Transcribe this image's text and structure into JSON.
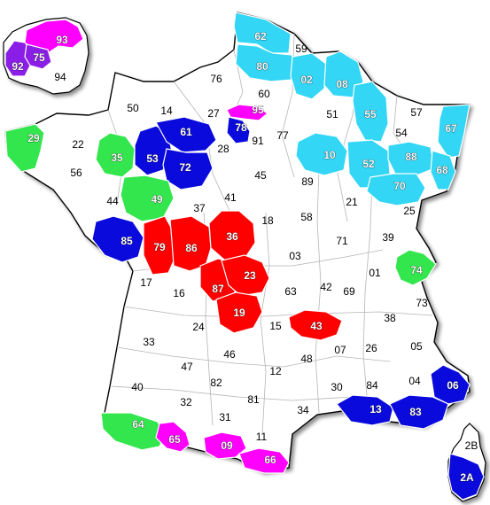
{
  "colors": {
    "cyan": "#33d6f4",
    "blue": "#0a0adc",
    "red": "#ff0000",
    "green": "#33e64d",
    "magenta": "#ff00ff",
    "purple": "#8a1ee6",
    "white": "#ffffff"
  },
  "departments": [
    {
      "code": "62",
      "color": "cyan"
    },
    {
      "code": "59",
      "color": "white"
    },
    {
      "code": "80",
      "color": "cyan"
    },
    {
      "code": "02",
      "color": "cyan"
    },
    {
      "code": "08",
      "color": "cyan"
    },
    {
      "code": "76",
      "color": "white"
    },
    {
      "code": "60",
      "color": "white"
    },
    {
      "code": "50",
      "color": "white"
    },
    {
      "code": "14",
      "color": "white"
    },
    {
      "code": "27",
      "color": "white"
    },
    {
      "code": "95",
      "color": "magenta"
    },
    {
      "code": "51",
      "color": "white"
    },
    {
      "code": "55",
      "color": "cyan"
    },
    {
      "code": "57",
      "color": "white"
    },
    {
      "code": "67",
      "color": "cyan"
    },
    {
      "code": "29",
      "color": "green"
    },
    {
      "code": "22",
      "color": "white"
    },
    {
      "code": "35",
      "color": "green"
    },
    {
      "code": "53",
      "color": "blue"
    },
    {
      "code": "61",
      "color": "blue"
    },
    {
      "code": "72",
      "color": "blue"
    },
    {
      "code": "28",
      "color": "white"
    },
    {
      "code": "78",
      "color": "blue"
    },
    {
      "code": "91",
      "color": "white"
    },
    {
      "code": "77",
      "color": "white"
    },
    {
      "code": "10",
      "color": "cyan"
    },
    {
      "code": "52",
      "color": "cyan"
    },
    {
      "code": "54",
      "color": "white"
    },
    {
      "code": "88",
      "color": "cyan"
    },
    {
      "code": "68",
      "color": "cyan"
    },
    {
      "code": "56",
      "color": "white"
    },
    {
      "code": "44",
      "color": "white"
    },
    {
      "code": "49",
      "color": "green"
    },
    {
      "code": "45",
      "color": "white"
    },
    {
      "code": "89",
      "color": "white"
    },
    {
      "code": "70",
      "color": "cyan"
    },
    {
      "code": "21",
      "color": "white"
    },
    {
      "code": "25",
      "color": "white"
    },
    {
      "code": "37",
      "color": "white"
    },
    {
      "code": "41",
      "color": "white"
    },
    {
      "code": "18",
      "color": "white"
    },
    {
      "code": "58",
      "color": "white"
    },
    {
      "code": "85",
      "color": "blue"
    },
    {
      "code": "79",
      "color": "red"
    },
    {
      "code": "86",
      "color": "red"
    },
    {
      "code": "36",
      "color": "red"
    },
    {
      "code": "71",
      "color": "white"
    },
    {
      "code": "39",
      "color": "white"
    },
    {
      "code": "03",
      "color": "white"
    },
    {
      "code": "01",
      "color": "white"
    },
    {
      "code": "74",
      "color": "green"
    },
    {
      "code": "17",
      "color": "white"
    },
    {
      "code": "16",
      "color": "white"
    },
    {
      "code": "87",
      "color": "red"
    },
    {
      "code": "23",
      "color": "red"
    },
    {
      "code": "63",
      "color": "white"
    },
    {
      "code": "42",
      "color": "white"
    },
    {
      "code": "69",
      "color": "white"
    },
    {
      "code": "73",
      "color": "white"
    },
    {
      "code": "19",
      "color": "red"
    },
    {
      "code": "38",
      "color": "white"
    },
    {
      "code": "24",
      "color": "white"
    },
    {
      "code": "15",
      "color": "white"
    },
    {
      "code": "43",
      "color": "red"
    },
    {
      "code": "33",
      "color": "white"
    },
    {
      "code": "05",
      "color": "white"
    },
    {
      "code": "46",
      "color": "white"
    },
    {
      "code": "07",
      "color": "white"
    },
    {
      "code": "26",
      "color": "white"
    },
    {
      "code": "47",
      "color": "white"
    },
    {
      "code": "12",
      "color": "white"
    },
    {
      "code": "48",
      "color": "white"
    },
    {
      "code": "04",
      "color": "white"
    },
    {
      "code": "06",
      "color": "blue"
    },
    {
      "code": "40",
      "color": "white"
    },
    {
      "code": "82",
      "color": "white"
    },
    {
      "code": "30",
      "color": "white"
    },
    {
      "code": "84",
      "color": "white"
    },
    {
      "code": "81",
      "color": "white"
    },
    {
      "code": "32",
      "color": "white"
    },
    {
      "code": "13",
      "color": "blue"
    },
    {
      "code": "83",
      "color": "blue"
    },
    {
      "code": "34",
      "color": "white"
    },
    {
      "code": "31",
      "color": "white"
    },
    {
      "code": "64",
      "color": "green"
    },
    {
      "code": "11",
      "color": "white"
    },
    {
      "code": "65",
      "color": "magenta"
    },
    {
      "code": "09",
      "color": "magenta"
    },
    {
      "code": "66",
      "color": "magenta"
    },
    {
      "code": "2B",
      "color": "white"
    },
    {
      "code": "2A",
      "color": "blue"
    },
    {
      "code": "93",
      "color": "magenta"
    },
    {
      "code": "92",
      "color": "purple"
    },
    {
      "code": "75",
      "color": "purple"
    },
    {
      "code": "94",
      "color": "white"
    }
  ]
}
